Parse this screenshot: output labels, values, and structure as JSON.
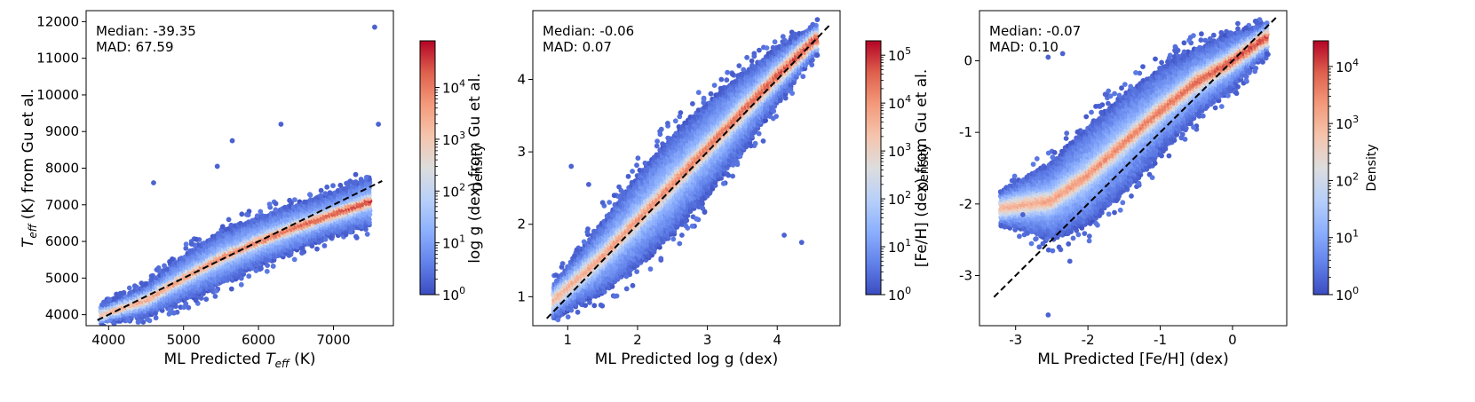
{
  "chart_data": [
    {
      "type": "scatter",
      "subtype": "hexbin-density",
      "id": "teff",
      "xlabel_parts": [
        "ML Predicted ",
        "T",
        "eff",
        " (K)"
      ],
      "ylabel_parts": [
        "T",
        "eff",
        " (K) from Gu et al."
      ],
      "xlim": [
        3700,
        7800
      ],
      "ylim": [
        3700,
        12300
      ],
      "xticks": [
        4000,
        5000,
        6000,
        7000
      ],
      "yticks": [
        4000,
        5000,
        6000,
        7000,
        8000,
        9000,
        10000,
        11000,
        12000
      ],
      "annotation": [
        "Median: -39.35",
        "MAD: 67.59"
      ],
      "one_to_one_line": [
        [
          3850,
          3850
        ],
        [
          7650,
          7650
        ]
      ],
      "ridge": {
        "x": [
          3900,
          4500,
          5000,
          5500,
          6000,
          6500,
          7000,
          7500
        ],
        "y": [
          4000,
          4400,
          5000,
          5550,
          6000,
          6400,
          6750,
          7100
        ]
      },
      "spread": {
        "x": [
          3900,
          4500,
          5000,
          5500,
          6000,
          6500,
          7000,
          7500
        ],
        "y": [
          250,
          450,
          650,
          750,
          700,
          650,
          600,
          700
        ]
      },
      "core_width": 140,
      "outliers": [
        [
          7550,
          11850
        ],
        [
          7600,
          9200
        ],
        [
          6300,
          9200
        ],
        [
          5650,
          8750
        ],
        [
          5450,
          8050
        ],
        [
          4600,
          7600
        ]
      ],
      "colorbar": {
        "label": "Density",
        "ticks": [
          "10",
          "10",
          "10",
          "10",
          "10"
        ],
        "exponents": [
          "0",
          "1",
          "2",
          "3",
          "4"
        ],
        "max_log": 4.9
      }
    },
    {
      "type": "scatter",
      "subtype": "hexbin-density",
      "id": "logg",
      "xlabel": "ML Predicted log g (dex)",
      "ylabel": "log g (dex) from Gu et al.",
      "xlim": [
        0.5,
        4.9
      ],
      "ylim": [
        0.6,
        4.95
      ],
      "xticks": [
        1,
        2,
        3,
        4
      ],
      "yticks": [
        1,
        2,
        3,
        4
      ],
      "annotation": [
        "Median: -0.06",
        "MAD: 0.07"
      ],
      "one_to_one_line": [
        [
          0.7,
          0.7
        ],
        [
          4.75,
          4.75
        ]
      ],
      "ridge": {
        "x": [
          0.8,
          1.5,
          2.0,
          2.5,
          3.0,
          3.5,
          4.0,
          4.6
        ],
        "y": [
          0.95,
          1.55,
          2.05,
          2.55,
          3.05,
          3.55,
          4.05,
          4.6
        ]
      },
      "spread": {
        "x": [
          0.8,
          1.5,
          2.0,
          2.5,
          3.0,
          3.5,
          4.0,
          4.6
        ],
        "y": [
          0.25,
          0.5,
          0.65,
          0.7,
          0.65,
          0.55,
          0.4,
          0.2
        ]
      },
      "core_width": 0.12,
      "outliers": [
        [
          1.05,
          2.8
        ],
        [
          1.3,
          2.55
        ],
        [
          3.2,
          4.0
        ],
        [
          3.8,
          3.15
        ],
        [
          4.1,
          1.85
        ],
        [
          4.35,
          1.75
        ],
        [
          1.5,
          2.3
        ]
      ],
      "colorbar": {
        "label": "Density",
        "ticks": [
          "10",
          "10",
          "10",
          "10",
          "10",
          "10"
        ],
        "exponents": [
          "0",
          "1",
          "2",
          "3",
          "4",
          "5"
        ],
        "max_log": 5.3
      }
    },
    {
      "type": "scatter",
      "subtype": "hexbin-density",
      "id": "feh",
      "xlabel": "ML Predicted [Fe/H] (dex)",
      "ylabel": "[Fe/H] (dex) from Gu et al.",
      "xlim": [
        -3.5,
        0.75
      ],
      "ylim": [
        -3.7,
        0.7
      ],
      "xticks": [
        -3,
        -2,
        -1,
        0
      ],
      "yticks": [
        -3,
        -2,
        -1,
        0
      ],
      "annotation": [
        "Median: -0.07",
        "MAD: 0.10"
      ],
      "one_to_one_line": [
        [
          -3.3,
          -3.3
        ],
        [
          0.6,
          0.6
        ]
      ],
      "ridge": {
        "x": [
          -3.2,
          -2.5,
          -2.0,
          -1.5,
          -1.0,
          -0.5,
          0.0,
          0.5
        ],
        "y": [
          -2.05,
          -1.95,
          -1.6,
          -1.15,
          -0.7,
          -0.3,
          0.0,
          0.35
        ]
      },
      "spread": {
        "x": [
          -3.2,
          -2.5,
          -2.0,
          -1.5,
          -1.0,
          -0.5,
          0.0,
          0.5
        ],
        "y": [
          0.25,
          0.55,
          0.7,
          0.7,
          0.6,
          0.5,
          0.4,
          0.2
        ]
      },
      "core_width": 0.12,
      "outliers": [
        [
          -2.35,
          0.1
        ],
        [
          -2.55,
          0.05
        ],
        [
          -2.55,
          -3.55
        ],
        [
          -2.25,
          -2.8
        ],
        [
          -3.2,
          -2.3
        ],
        [
          -2.9,
          -2.15
        ]
      ],
      "colorbar": {
        "label": "Density",
        "ticks": [
          "10",
          "10",
          "10",
          "10",
          "10"
        ],
        "exponents": [
          "0",
          "1",
          "2",
          "3",
          "4"
        ],
        "max_log": 4.45
      }
    }
  ]
}
